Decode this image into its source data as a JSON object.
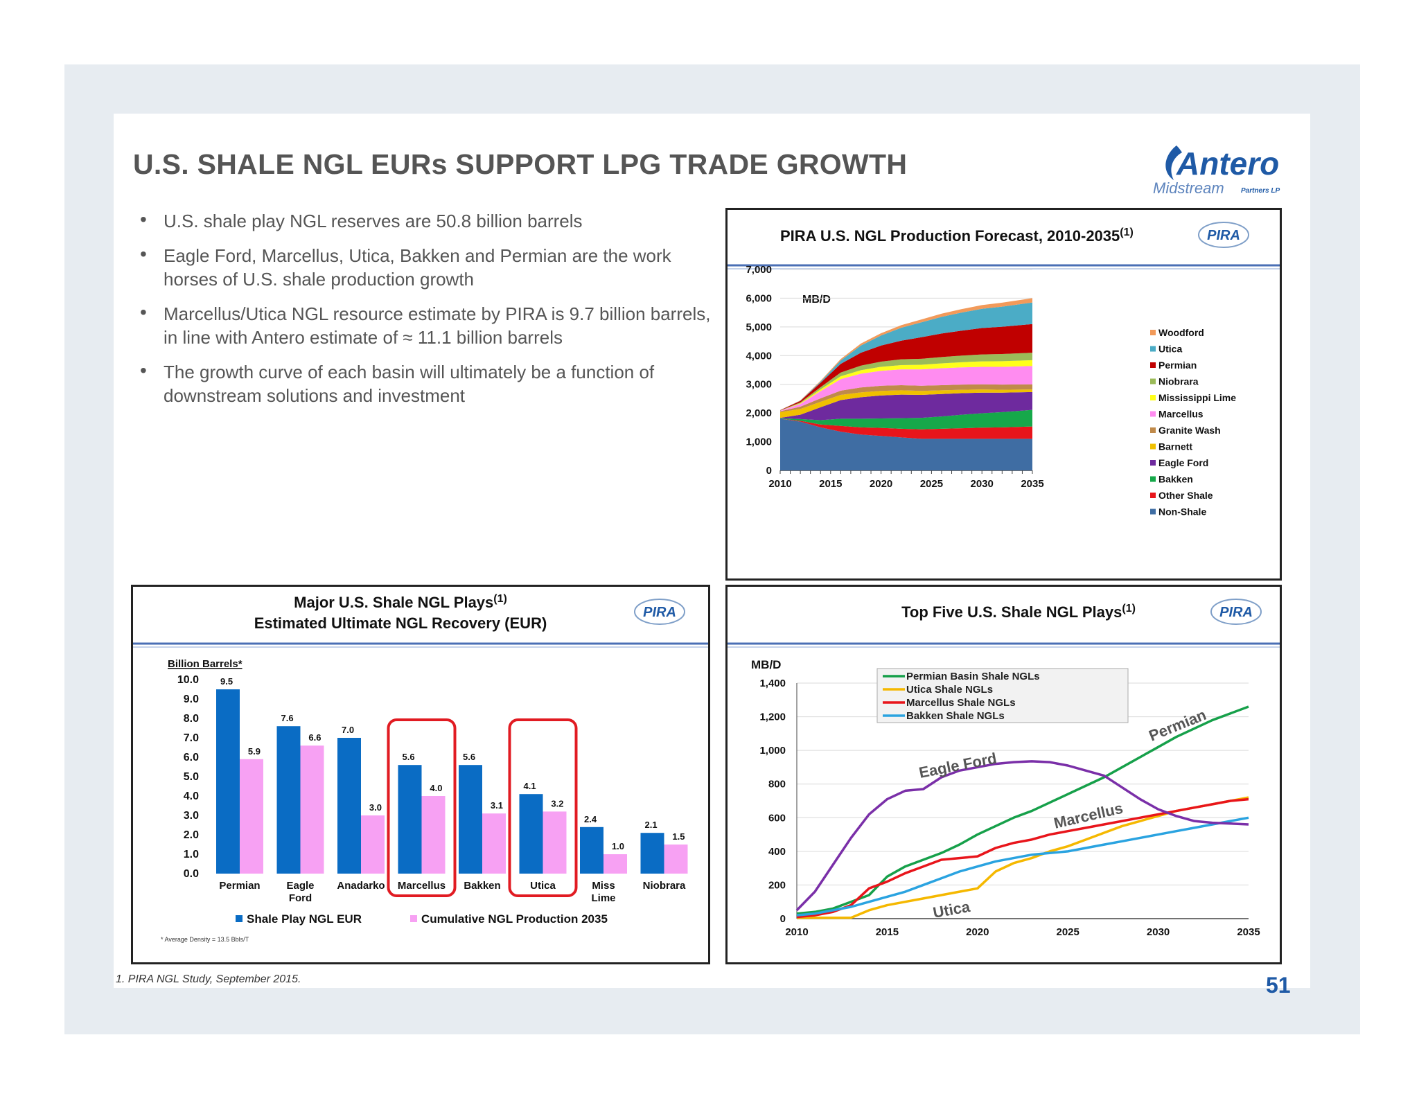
{
  "slide": {
    "title": "U.S. SHALE NGL EURs SUPPORT LPG TRADE GROWTH",
    "logo": {
      "name": "Antero",
      "sub": "Midstream",
      "suffix": "Partners LP"
    },
    "bullets": [
      "U.S. shale play NGL reserves are 50.8 billion barrels",
      "Eagle Ford, Marcellus, Utica, Bakken and Permian are the work horses of U.S. shale production growth",
      "Marcellus/Utica NGL resource estimate by PIRA is 9.7 billion barrels, in line with Antero estimate of ≈ 11.1 billion barrels",
      "The growth curve of each basin will ultimately be a function of downstream solutions and investment"
    ],
    "footnote": "1. PIRA NGL Study, September 2015.",
    "page_number": "51",
    "badge": "PIRA",
    "colors": {
      "title": "#555555",
      "accent": "#1f5aa6",
      "frame": "#e7ecf1"
    }
  },
  "chart_data": [
    {
      "type": "area",
      "title": "PIRA U.S. NGL Production Forecast, 2010-2035",
      "title_sup": "(1)",
      "ylabel": "MB/D",
      "ylim": [
        0,
        7000
      ],
      "yticks": [
        "0",
        "1,000",
        "2,000",
        "3,000",
        "4,000",
        "5,000",
        "6,000",
        "7,000"
      ],
      "xticks": [
        "2010",
        "2015",
        "2020",
        "2025",
        "2030",
        "2035"
      ],
      "grid": true,
      "stacked": true,
      "legend_position": "right",
      "x": [
        2010,
        2012,
        2014,
        2016,
        2018,
        2020,
        2022,
        2024,
        2026,
        2028,
        2030,
        2032,
        2035
      ],
      "series": [
        {
          "name": "Non-Shale",
          "color": "#3f6da3",
          "values": [
            1800,
            1700,
            1500,
            1350,
            1250,
            1200,
            1150,
            1100,
            1100,
            1100,
            1100,
            1100,
            1100
          ]
        },
        {
          "name": "Other Shale",
          "color": "#e8151b",
          "values": [
            0,
            30,
            100,
            200,
            250,
            280,
            300,
            330,
            350,
            370,
            390,
            400,
            430
          ]
        },
        {
          "name": "Bakken",
          "color": "#16a84a",
          "values": [
            20,
            60,
            150,
            250,
            300,
            330,
            370,
            400,
            430,
            470,
            500,
            530,
            580
          ]
        },
        {
          "name": "Eagle Ford",
          "color": "#6e2a9e",
          "values": [
            10,
            150,
            450,
            650,
            750,
            800,
            820,
            800,
            780,
            750,
            720,
            680,
            620
          ]
        },
        {
          "name": "Barnett",
          "color": "#f0c000",
          "values": [
            200,
            200,
            190,
            180,
            170,
            160,
            150,
            140,
            130,
            120,
            110,
            100,
            90
          ]
        },
        {
          "name": "Granite Wash",
          "color": "#c08a4a",
          "values": [
            30,
            80,
            120,
            150,
            170,
            180,
            180,
            180,
            180,
            180,
            180,
            180,
            180
          ]
        },
        {
          "name": "Marcellus",
          "color": "#ff8cf0",
          "values": [
            20,
            100,
            250,
            400,
            480,
            520,
            550,
            570,
            590,
            600,
            610,
            620,
            640
          ]
        },
        {
          "name": "Mississippi Lime",
          "color": "#ffff1a",
          "values": [
            0,
            20,
            60,
            100,
            120,
            140,
            150,
            160,
            170,
            180,
            190,
            195,
            200
          ]
        },
        {
          "name": "Niobrara",
          "color": "#9bbb59",
          "values": [
            10,
            30,
            80,
            130,
            160,
            180,
            200,
            210,
            220,
            230,
            240,
            250,
            260
          ]
        },
        {
          "name": "Permian",
          "color": "#c00000",
          "values": [
            10,
            50,
            150,
            300,
            450,
            560,
            650,
            750,
            820,
            870,
            920,
            950,
            1000
          ]
        },
        {
          "name": "Utica",
          "color": "#4bacc6",
          "values": [
            0,
            10,
            40,
            120,
            250,
            350,
            450,
            520,
            580,
            630,
            670,
            700,
            750
          ]
        },
        {
          "name": "Woodford",
          "color": "#f29a5a",
          "values": [
            0,
            10,
            30,
            50,
            70,
            80,
            90,
            100,
            110,
            120,
            130,
            140,
            150
          ]
        }
      ]
    },
    {
      "type": "bar",
      "title": "Major U.S. Shale NGL Plays",
      "title_sup": "(1)",
      "title2": "Estimated Ultimate NGL Recovery (EUR)",
      "ylabel": "Billion Barrels*",
      "ylim": [
        0,
        10
      ],
      "yticks": [
        "0.0",
        "1.0",
        "2.0",
        "3.0",
        "4.0",
        "5.0",
        "6.0",
        "7.0",
        "8.0",
        "9.0",
        "10.0"
      ],
      "categories": [
        "Permian",
        "Eagle Ford",
        "Anadarko",
        "Marcellus",
        "Bakken",
        "Utica",
        "Miss Lime",
        "Niobrara"
      ],
      "category_display": [
        [
          "Permian"
        ],
        [
          "Eagle",
          "Ford"
        ],
        [
          "Anadarko"
        ],
        [
          "Marcellus"
        ],
        [
          "Bakken"
        ],
        [
          "Utica"
        ],
        [
          "Miss",
          "Lime"
        ],
        [
          "Niobrara"
        ]
      ],
      "highlighted": [
        "Marcellus",
        "Utica"
      ],
      "highlight_color": "#e11b22",
      "series": [
        {
          "name": "Shale Play NGL EUR",
          "color": "#0a6cc4",
          "values": [
            9.5,
            7.6,
            7.0,
            5.6,
            5.6,
            4.1,
            2.4,
            2.1
          ],
          "labels": [
            "9.5",
            "7.6",
            "7.0",
            "5.6",
            "5.6",
            "4.1",
            "2.4",
            "2.1"
          ]
        },
        {
          "name": "Cumulative NGL Production 2035",
          "color": "#f7a1f3",
          "values": [
            5.9,
            6.6,
            3.0,
            4.0,
            3.1,
            3.2,
            1.0,
            1.5
          ],
          "labels": [
            "5.9",
            "6.6",
            "3.0",
            "4.0",
            "3.1",
            "3.2",
            "1.0",
            "1.5"
          ]
        }
      ],
      "legend_position": "bottom",
      "note": "* Average Density = 13.5 Bbls/T"
    },
    {
      "type": "line",
      "title": "Top Five U.S. Shale NGL Plays",
      "title_sup": "(1)",
      "ylabel": "MB/D",
      "ylim": [
        0,
        1400
      ],
      "yticks": [
        "0",
        "200",
        "400",
        "600",
        "800",
        "1,000",
        "1,200",
        "1,400"
      ],
      "xticks": [
        "2010",
        "2015",
        "2020",
        "2025",
        "2030",
        "2035"
      ],
      "grid": true,
      "legend_position": "top",
      "x": [
        2010,
        2011,
        2012,
        2013,
        2014,
        2015,
        2016,
        2017,
        2018,
        2019,
        2020,
        2021,
        2022,
        2023,
        2024,
        2025,
        2026,
        2027,
        2028,
        2029,
        2030,
        2031,
        2032,
        2033,
        2034,
        2035
      ],
      "series": [
        {
          "name": "Permian Basin Shale NGLs",
          "color": "#16a04a",
          "values": [
            30,
            40,
            60,
            100,
            140,
            250,
            310,
            350,
            390,
            440,
            500,
            550,
            600,
            640,
            690,
            740,
            790,
            840,
            900,
            960,
            1020,
            1080,
            1130,
            1180,
            1220,
            1260
          ]
        },
        {
          "name": "Utica Shale NGLs",
          "color": "#f5b800",
          "values": [
            5,
            5,
            5,
            5,
            50,
            80,
            100,
            120,
            140,
            160,
            180,
            280,
            330,
            360,
            400,
            430,
            470,
            510,
            550,
            580,
            610,
            640,
            660,
            680,
            700,
            720
          ]
        },
        {
          "name": "Marcellus Shale NGLs",
          "color": "#e8151b",
          "values": [
            10,
            20,
            40,
            80,
            180,
            220,
            270,
            310,
            350,
            360,
            370,
            420,
            450,
            470,
            500,
            520,
            540,
            560,
            580,
            600,
            620,
            640,
            660,
            680,
            700,
            710
          ]
        },
        {
          "name": "Bakken Shale NGLs",
          "color": "#2aa3e0",
          "values": [
            20,
            30,
            50,
            70,
            100,
            130,
            160,
            200,
            240,
            280,
            310,
            340,
            360,
            380,
            390,
            400,
            420,
            440,
            460,
            480,
            500,
            520,
            540,
            560,
            580,
            600
          ]
        },
        {
          "name": "Eagle Ford",
          "color": "#7a2fa8",
          "values": [
            50,
            160,
            320,
            480,
            620,
            710,
            760,
            770,
            840,
            880,
            900,
            920,
            930,
            935,
            930,
            910,
            880,
            850,
            780,
            710,
            650,
            610,
            580,
            570,
            565,
            560
          ]
        }
      ],
      "annotations": [
        "Eagle Ford",
        "Permian",
        "Marcellus",
        "Utica"
      ]
    }
  ]
}
